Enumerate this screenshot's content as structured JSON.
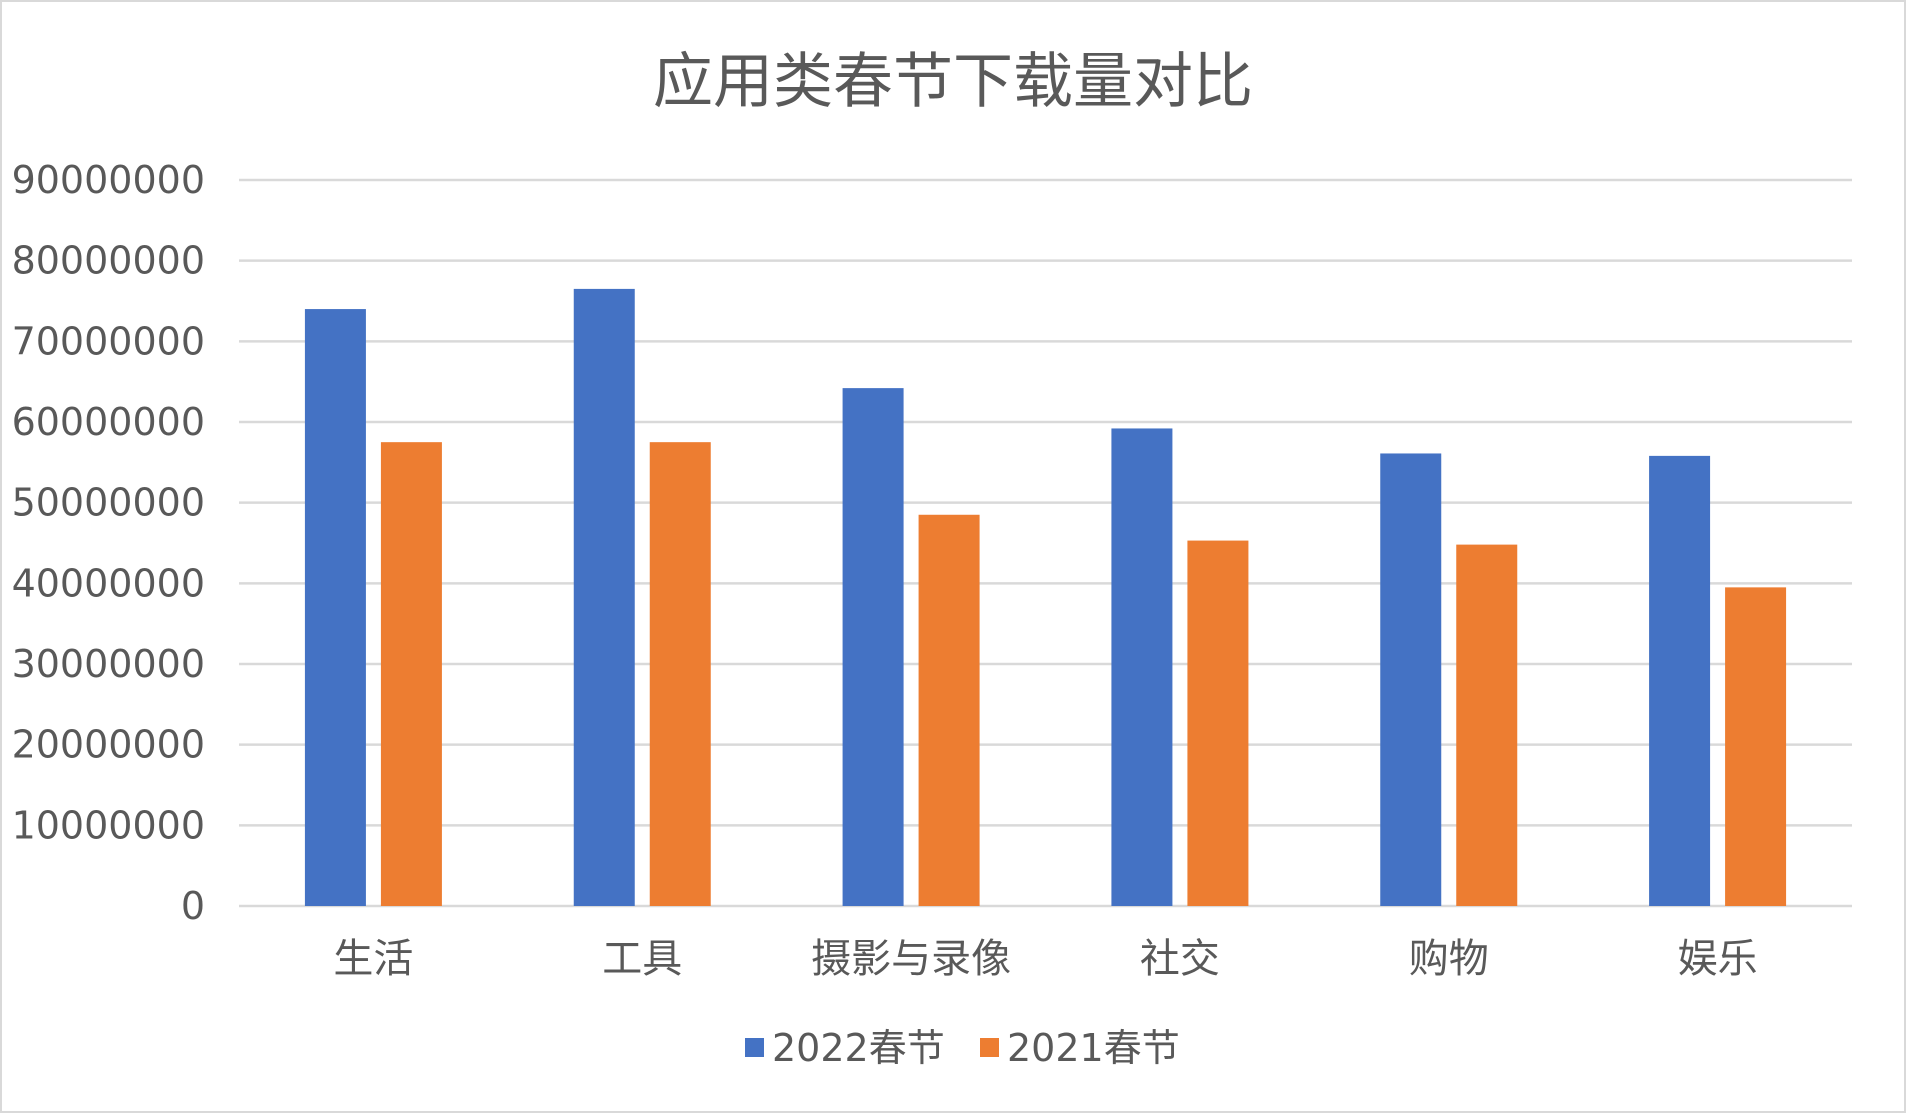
{
  "chart_data": {
    "type": "bar",
    "title": "应用类春节下载量对比",
    "categories": [
      "生活",
      "工具",
      "摄影与录像",
      "社交",
      "购物",
      "娱乐"
    ],
    "series": [
      {
        "name": "2022春节",
        "color": "#4472c4",
        "values": [
          74000000,
          76500000,
          64200000,
          59200000,
          56100000,
          55800000
        ]
      },
      {
        "name": "2021春节",
        "color": "#ed7d31",
        "values": [
          57500000,
          57500000,
          48500000,
          45300000,
          44800000,
          39500000
        ]
      }
    ],
    "yticks": [
      "0",
      "10000000",
      "20000000",
      "30000000",
      "40000000",
      "50000000",
      "60000000",
      "70000000",
      "80000000",
      "90000000"
    ],
    "ylim": [
      0,
      90000000
    ],
    "grid": true,
    "legend_position": "bottom"
  }
}
